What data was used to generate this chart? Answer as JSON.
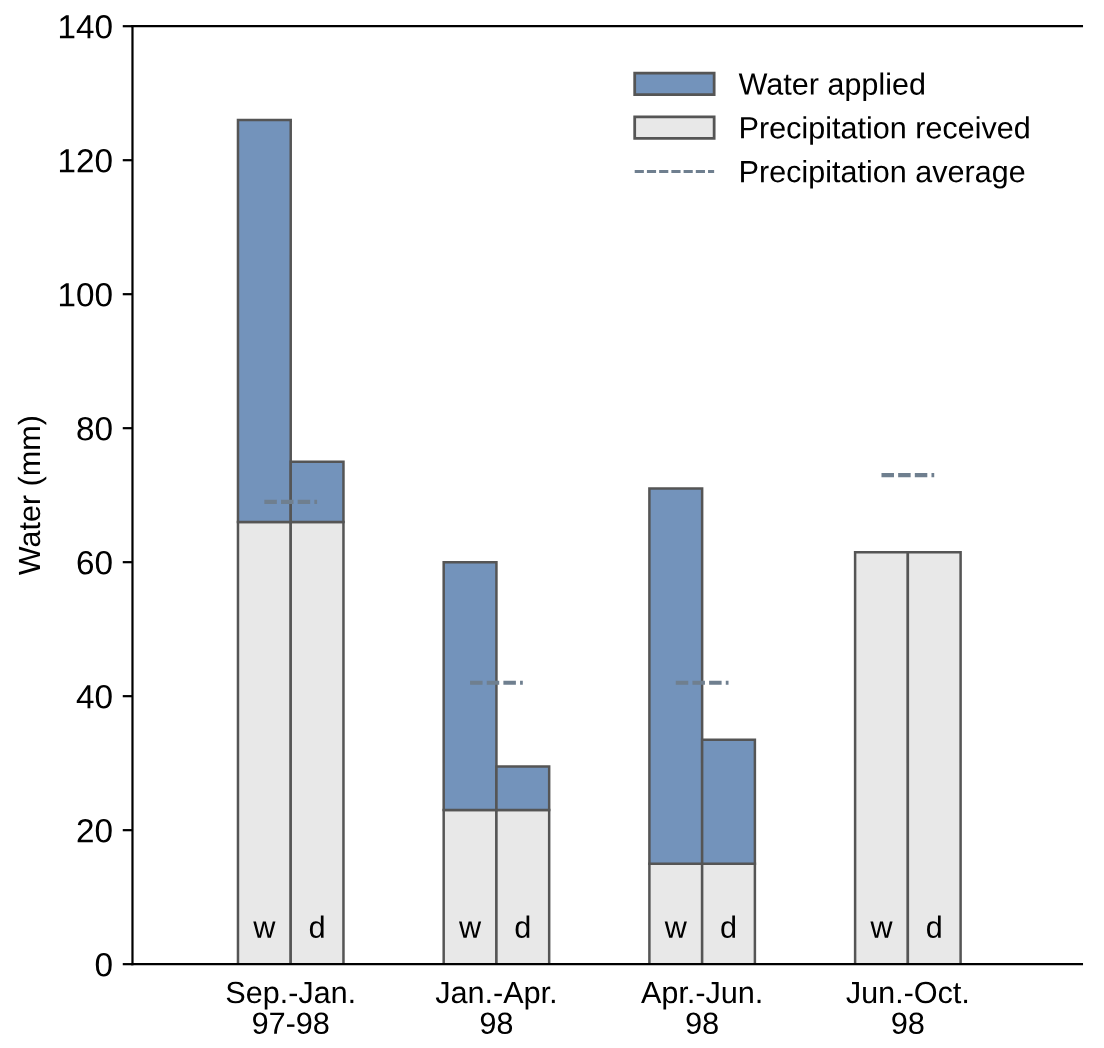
{
  "chart_data": {
    "type": "bar",
    "stacked": true,
    "ylabel": "Water (mm)",
    "categories": [
      "w",
      "d",
      "w",
      "d",
      "w",
      "d",
      "w",
      "d"
    ],
    "series": [
      {
        "name": "Precipitation received",
        "color": "#e8e8e8",
        "values": [
          66,
          66,
          23,
          23,
          15,
          15,
          61.5,
          61.5
        ]
      },
      {
        "name": "Water applied",
        "color": "#7393bb",
        "values": [
          60,
          9,
          37,
          6.5,
          56,
          18.5,
          0,
          0
        ]
      },
      {
        "name": "Precipitation average",
        "type": "line",
        "color": "#6f7f8f",
        "line_style": "dashed",
        "values": [
          69,
          69,
          null,
          null,
          null,
          null,
          null,
          null
        ]
      },
      {
        "type": "line",
        "color": "#6f7f8f",
        "line_style": "dashed",
        "values": [
          null,
          null,
          42,
          42,
          null,
          null,
          null,
          null
        ]
      },
      {
        "type": "line",
        "color": "#6f7f8f",
        "line_style": "dashed",
        "values": [
          null,
          null,
          null,
          null,
          42,
          42,
          null,
          null
        ]
      },
      {
        "type": "line",
        "color": "#6f7f8f",
        "line_style": "dashed",
        "values": [
          null,
          null,
          null,
          null,
          null,
          null,
          73,
          73
        ]
      }
    ],
    "annotations": [
      "Sep.-Jan.\n97-98",
      "Jan.-Apr.\n98",
      "Apr.-Jun.\n98",
      "Jun.-Oct.\n98"
    ],
    "ylim": [
      0,
      140
    ],
    "yticks": [
      0,
      20,
      40,
      60,
      80,
      100,
      120,
      140
    ],
    "grid": false,
    "legend": "top right"
  }
}
